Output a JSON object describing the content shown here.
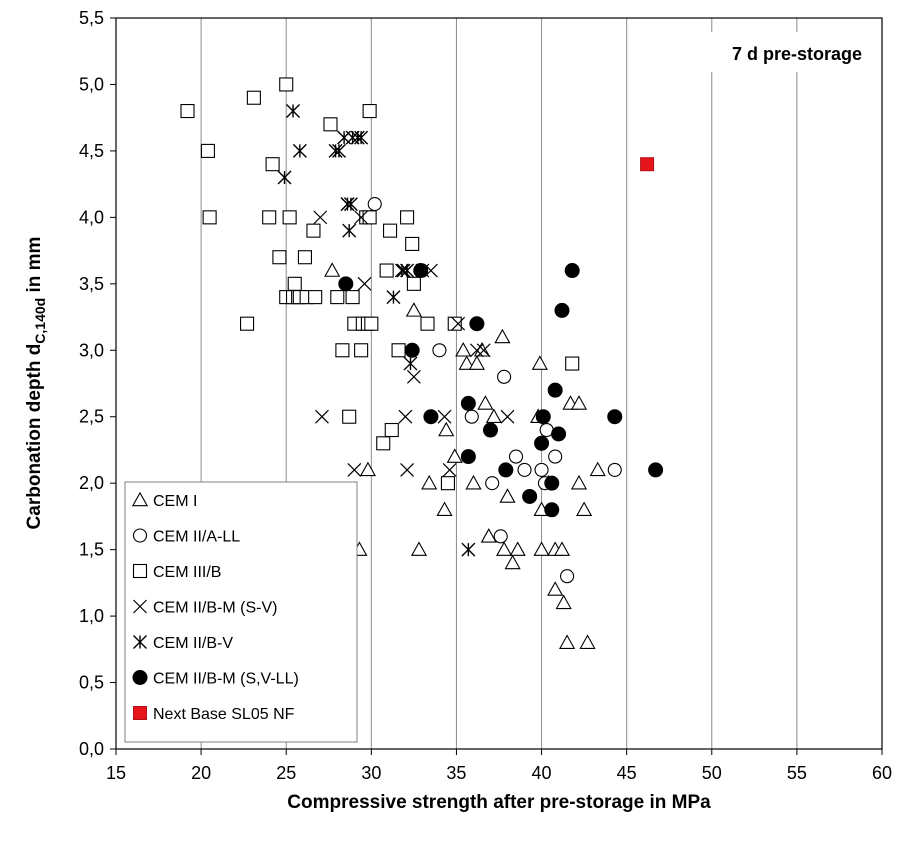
{
  "chart_data": {
    "type": "scatter",
    "xlabel": "Compressive strength after pre-storage in  MPa",
    "ylabel": {
      "main": "Carbonation depth d",
      "sub": "C,140d",
      "tail": " in mm"
    },
    "xlim": [
      15,
      60
    ],
    "ylim": [
      0,
      5.5
    ],
    "x_ticks": [
      "15",
      "20",
      "25",
      "30",
      "35",
      "40",
      "45",
      "50",
      "55",
      "60"
    ],
    "y_ticks": [
      "0,0",
      "0,5",
      "1,0",
      "1,5",
      "2,0",
      "2,5",
      "3,0",
      "3,5",
      "4,0",
      "4,5",
      "5,0",
      "5,5"
    ],
    "grid": "vertical major lines",
    "annotation": "7 d pre-storage",
    "legend_position": "bottom-left",
    "series": [
      {
        "name": "CEM I",
        "marker": "triangle-open",
        "color": "#000000",
        "points": [
          [
            27.7,
            3.6
          ],
          [
            29.3,
            1.5
          ],
          [
            29.8,
            2.1
          ],
          [
            32.8,
            1.5
          ],
          [
            32.5,
            3.3
          ],
          [
            33.4,
            2.0
          ],
          [
            34.3,
            1.8
          ],
          [
            34.4,
            2.4
          ],
          [
            34.9,
            2.2
          ],
          [
            35.4,
            3.0
          ],
          [
            35.6,
            2.9
          ],
          [
            36.0,
            2.0
          ],
          [
            36.2,
            2.9
          ],
          [
            36.5,
            3.0
          ],
          [
            36.7,
            2.6
          ],
          [
            36.9,
            1.6
          ],
          [
            37.2,
            2.5
          ],
          [
            37.7,
            3.1
          ],
          [
            37.8,
            1.5
          ],
          [
            38.0,
            1.9
          ],
          [
            38.3,
            1.4
          ],
          [
            38.6,
            1.5
          ],
          [
            39.8,
            2.5
          ],
          [
            39.9,
            2.9
          ],
          [
            40.0,
            1.8
          ],
          [
            40.0,
            1.5
          ],
          [
            40.4,
            2.0
          ],
          [
            40.8,
            1.5
          ],
          [
            40.8,
            1.2
          ],
          [
            41.2,
            1.5
          ],
          [
            41.3,
            1.1
          ],
          [
            41.5,
            0.8
          ],
          [
            41.7,
            2.6
          ],
          [
            42.2,
            2.0
          ],
          [
            42.2,
            2.6
          ],
          [
            42.5,
            1.8
          ],
          [
            42.7,
            0.8
          ],
          [
            43.3,
            2.1
          ]
        ]
      },
      {
        "name": "CEM II/A-LL",
        "marker": "circle-open",
        "color": "#000000",
        "points": [
          [
            30.2,
            4.1
          ],
          [
            34.0,
            3.0
          ],
          [
            35.9,
            2.5
          ],
          [
            37.1,
            2.0
          ],
          [
            37.6,
            1.6
          ],
          [
            37.8,
            2.8
          ],
          [
            38.5,
            2.2
          ],
          [
            39.0,
            2.1
          ],
          [
            40.0,
            2.1
          ],
          [
            40.2,
            2.0
          ],
          [
            40.3,
            2.4
          ],
          [
            40.8,
            2.2
          ],
          [
            41.5,
            1.3
          ],
          [
            44.3,
            2.1
          ]
        ]
      },
      {
        "name": "CEM III/B",
        "marker": "square-open",
        "color": "#000000",
        "points": [
          [
            19.2,
            4.8
          ],
          [
            20.4,
            4.5
          ],
          [
            20.5,
            4.0
          ],
          [
            22.7,
            3.2
          ],
          [
            23.1,
            4.9
          ],
          [
            24.0,
            4.0
          ],
          [
            24.2,
            4.4
          ],
          [
            24.6,
            3.7
          ],
          [
            25.0,
            3.4
          ],
          [
            25.0,
            5.0
          ],
          [
            25.2,
            4.0
          ],
          [
            25.4,
            3.4
          ],
          [
            25.5,
            3.5
          ],
          [
            25.7,
            3.4
          ],
          [
            25.8,
            3.4
          ],
          [
            26.1,
            3.7
          ],
          [
            26.2,
            3.4
          ],
          [
            26.6,
            3.9
          ],
          [
            26.7,
            3.4
          ],
          [
            27.6,
            4.7
          ],
          [
            28.0,
            3.4
          ],
          [
            28.3,
            3.0
          ],
          [
            28.7,
            2.5
          ],
          [
            28.9,
            3.4
          ],
          [
            29.0,
            3.2
          ],
          [
            29.4,
            3.0
          ],
          [
            29.5,
            3.2
          ],
          [
            29.7,
            4.0
          ],
          [
            29.8,
            3.2
          ],
          [
            29.9,
            4.8
          ],
          [
            29.9,
            4.0
          ],
          [
            30.0,
            3.2
          ],
          [
            30.7,
            2.3
          ],
          [
            30.9,
            3.6
          ],
          [
            31.1,
            3.9
          ],
          [
            31.2,
            2.4
          ],
          [
            31.6,
            3.0
          ],
          [
            32.1,
            4.0
          ],
          [
            32.4,
            3.8
          ],
          [
            32.5,
            3.5
          ],
          [
            33.3,
            3.2
          ],
          [
            34.5,
            2.0
          ],
          [
            34.9,
            3.2
          ],
          [
            41.8,
            2.9
          ]
        ]
      },
      {
        "name": "CEM II/B-M (S-V)",
        "marker": "x",
        "color": "#000000",
        "points": [
          [
            27.0,
            4.0
          ],
          [
            27.1,
            2.5
          ],
          [
            28.6,
            4.1
          ],
          [
            29.0,
            2.1
          ],
          [
            29.4,
            4.0
          ],
          [
            29.6,
            3.5
          ],
          [
            31.9,
            3.6
          ],
          [
            32.0,
            2.5
          ],
          [
            32.1,
            2.1
          ],
          [
            32.5,
            2.8
          ],
          [
            33.0,
            3.6
          ],
          [
            33.5,
            3.6
          ],
          [
            34.3,
            2.5
          ],
          [
            34.6,
            2.1
          ],
          [
            35.1,
            3.2
          ],
          [
            36.2,
            3.0
          ],
          [
            36.6,
            3.0
          ],
          [
            38.0,
            2.5
          ]
        ]
      },
      {
        "name": "CEM II/B-V",
        "marker": "asterisk",
        "color": "#000000",
        "points": [
          [
            24.9,
            4.3
          ],
          [
            25.4,
            4.8
          ],
          [
            25.8,
            4.5
          ],
          [
            27.9,
            4.5
          ],
          [
            28.1,
            4.5
          ],
          [
            28.4,
            4.6
          ],
          [
            28.6,
            4.1
          ],
          [
            28.7,
            3.9
          ],
          [
            28.8,
            4.1
          ],
          [
            28.9,
            4.6
          ],
          [
            29.2,
            4.6
          ],
          [
            29.4,
            4.6
          ],
          [
            31.3,
            3.4
          ],
          [
            31.8,
            3.6
          ],
          [
            32.1,
            3.6
          ],
          [
            32.3,
            2.9
          ],
          [
            35.7,
            1.5
          ]
        ]
      },
      {
        "name": "CEM II/B-M (S,V-LL)",
        "marker": "circle-filled",
        "color": "#000000",
        "points": [
          [
            28.5,
            3.5
          ],
          [
            32.4,
            3.0
          ],
          [
            32.9,
            3.6
          ],
          [
            33.5,
            2.5
          ],
          [
            35.7,
            2.6
          ],
          [
            35.7,
            2.2
          ],
          [
            36.2,
            3.2
          ],
          [
            37.0,
            2.4
          ],
          [
            37.9,
            2.1
          ],
          [
            39.3,
            1.9
          ],
          [
            40.0,
            2.3
          ],
          [
            40.1,
            2.5
          ],
          [
            40.6,
            2.0
          ],
          [
            40.6,
            1.8
          ],
          [
            40.8,
            2.7
          ],
          [
            41.0,
            2.37
          ],
          [
            41.2,
            3.3
          ],
          [
            41.8,
            3.6
          ],
          [
            44.3,
            2.5
          ],
          [
            46.7,
            2.1
          ]
        ]
      },
      {
        "name": "Next Base SL05 NF",
        "marker": "square-filled",
        "color": "#e8141b",
        "points": [
          [
            46.2,
            4.4
          ]
        ]
      }
    ]
  }
}
